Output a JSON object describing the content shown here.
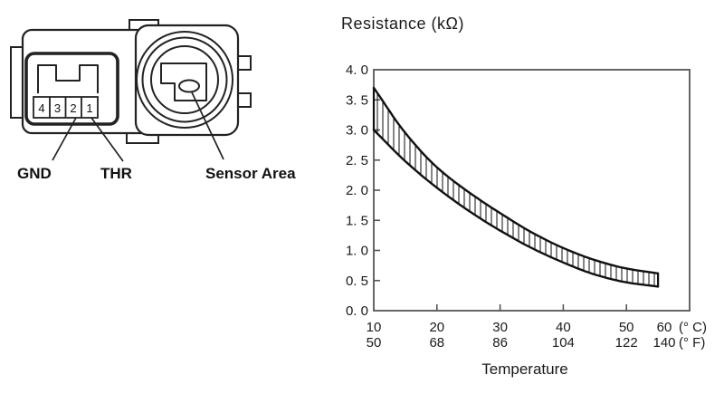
{
  "diagram": {
    "pins": [
      "4",
      "3",
      "2",
      "1"
    ],
    "labels": {
      "gnd": "GND",
      "thr": "THR",
      "sensor_area": "Sensor Area"
    }
  },
  "chart": {
    "title": "Resistance (kΩ)",
    "xlabel": "Temperature",
    "y_tick_labels": [
      "4. 0",
      "3. 5",
      "3. 0",
      "2. 5",
      "2. 0",
      "1. 5",
      "1. 0",
      "0. 5",
      "0. 0"
    ],
    "x_tick_labels_c": [
      "10",
      "20",
      "30",
      "40",
      "50",
      "60"
    ],
    "x_tick_labels_f": [
      "50",
      "68",
      "86",
      "104",
      "122",
      "140"
    ],
    "unit_suffix_c": "(° C)",
    "unit_suffix_f": "(° F)"
  },
  "chart_data": {
    "type": "area",
    "title": "Resistance (kΩ)",
    "xlabel": "Temperature",
    "ylabel": "Resistance (kΩ)",
    "xlim": [
      10,
      60
    ],
    "ylim": [
      0,
      4
    ],
    "grid": false,
    "legend": "none",
    "x_celsius": [
      10,
      20,
      30,
      40,
      50,
      60
    ],
    "x_fahrenheit": [
      50,
      68,
      86,
      104,
      122,
      140
    ],
    "y_ticks": [
      0,
      0.5,
      1,
      1.5,
      2,
      2.5,
      3,
      3.5,
      4
    ],
    "x_ticks_minor": [
      20,
      30,
      40,
      50
    ],
    "band_style": "vertical-hatch",
    "band": {
      "name": "acceptable-resistance-range",
      "x": [
        10,
        15,
        20,
        25,
        30,
        35,
        40,
        45,
        50,
        55
      ],
      "upper": [
        3.7,
        2.95,
        2.38,
        1.97,
        1.62,
        1.3,
        1.04,
        0.84,
        0.7,
        0.62
      ],
      "lower": [
        3.0,
        2.48,
        2.04,
        1.66,
        1.33,
        1.04,
        0.8,
        0.6,
        0.47,
        0.4
      ]
    }
  },
  "colors": {
    "ink": "#1a1a1a",
    "curve": "#111111",
    "axis": "#555555",
    "background": "#ffffff"
  }
}
